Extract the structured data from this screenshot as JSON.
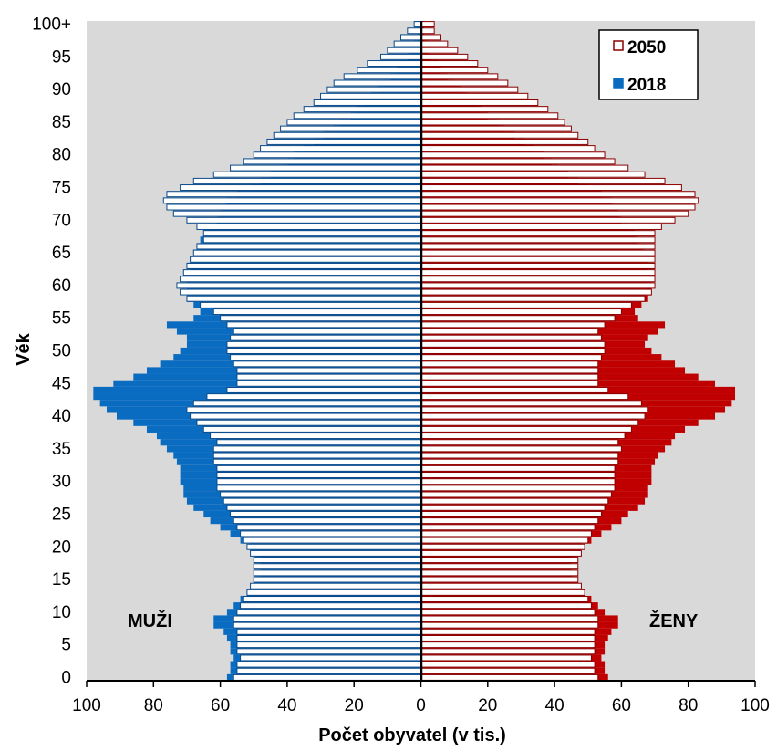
{
  "chart_data": {
    "type": "bar",
    "orientation": "horizontal",
    "subtype": "population-pyramid",
    "title": "",
    "xlabel": "Počet obyvatel (v tis.)",
    "ylabel": "Věk",
    "xlim": [
      -100,
      100
    ],
    "ylim": [
      0,
      100
    ],
    "x_ticks": [
      "100",
      "80",
      "60",
      "40",
      "20",
      "0",
      "20",
      "40",
      "60",
      "80",
      "100"
    ],
    "y_ticks": [
      "0",
      "5",
      "10",
      "15",
      "20",
      "25",
      "30",
      "35",
      "40",
      "45",
      "50",
      "55",
      "60",
      "65",
      "70",
      "75",
      "80",
      "85",
      "90",
      "95",
      "100+"
    ],
    "grid": false,
    "legend": "top-right",
    "left_label": "MUŽI",
    "right_label": "ŽENY",
    "ages": [
      0,
      1,
      2,
      3,
      4,
      5,
      6,
      7,
      8,
      9,
      10,
      11,
      12,
      13,
      14,
      15,
      16,
      17,
      18,
      19,
      20,
      21,
      22,
      23,
      24,
      25,
      26,
      27,
      28,
      29,
      30,
      31,
      32,
      33,
      34,
      35,
      36,
      37,
      38,
      39,
      40,
      41,
      42,
      43,
      44,
      45,
      46,
      47,
      48,
      49,
      50,
      51,
      52,
      53,
      54,
      55,
      56,
      57,
      58,
      59,
      60,
      61,
      62,
      63,
      64,
      65,
      66,
      67,
      68,
      69,
      70,
      71,
      72,
      73,
      74,
      75,
      76,
      77,
      78,
      79,
      80,
      81,
      82,
      83,
      84,
      85,
      86,
      87,
      88,
      89,
      90,
      91,
      92,
      93,
      94,
      95,
      96,
      97,
      98,
      99,
      100
    ],
    "series": [
      {
        "name": "2018",
        "style": "filled",
        "colors": {
          "male": "#0a6cc1",
          "female": "#c00000"
        },
        "male": [
          58,
          57,
          57,
          56,
          57,
          57,
          58,
          59,
          62,
          62,
          58,
          56,
          54,
          52,
          50,
          49,
          48,
          48,
          48,
          49,
          51,
          54,
          57,
          60,
          63,
          65,
          68,
          70,
          71,
          71,
          72,
          72,
          72,
          73,
          74,
          76,
          78,
          79,
          82,
          86,
          91,
          94,
          96,
          98,
          98,
          92,
          86,
          82,
          78,
          74,
          72,
          70,
          70,
          73,
          76,
          68,
          66,
          68,
          70,
          70,
          70,
          70,
          69,
          70,
          69,
          68,
          67,
          66,
          65,
          63,
          61,
          60,
          59,
          58,
          55,
          51,
          48,
          45,
          42,
          40,
          38,
          35,
          32,
          29,
          26,
          24,
          21,
          19,
          17,
          15,
          13,
          11,
          9,
          7,
          6,
          4,
          3,
          2,
          1,
          1,
          2
        ],
        "female": [
          56,
          55,
          55,
          54,
          55,
          55,
          56,
          57,
          59,
          59,
          55,
          53,
          51,
          49,
          47,
          46,
          45,
          45,
          45,
          46,
          48,
          51,
          54,
          57,
          60,
          62,
          65,
          67,
          68,
          68,
          69,
          69,
          69,
          70,
          71,
          73,
          75,
          76,
          79,
          83,
          88,
          91,
          93,
          94,
          94,
          88,
          83,
          79,
          76,
          72,
          69,
          67,
          68,
          71,
          73,
          65,
          64,
          66,
          68,
          69,
          69,
          69,
          68,
          69,
          68,
          67,
          66,
          65,
          64,
          62,
          60,
          59,
          58,
          57,
          54,
          50,
          47,
          44,
          41,
          39,
          37,
          34,
          31,
          28,
          25,
          23,
          20,
          18,
          16,
          14,
          12,
          10,
          8,
          6,
          5,
          3,
          2,
          2,
          1,
          1,
          1
        ]
      },
      {
        "name": "2050",
        "style": "outline",
        "colors": {
          "male": "#0a4a8a",
          "female": "#8c0000"
        },
        "male": [
          56,
          55,
          55,
          54,
          55,
          55,
          55,
          55,
          56,
          56,
          55,
          54,
          53,
          52,
          51,
          50,
          50,
          50,
          50,
          51,
          52,
          53,
          54,
          55,
          56,
          57,
          58,
          59,
          60,
          61,
          61,
          61,
          61,
          62,
          62,
          62,
          61,
          63,
          65,
          67,
          69,
          70,
          68,
          64,
          58,
          55,
          55,
          55,
          56,
          57,
          58,
          58,
          57,
          56,
          58,
          60,
          62,
          66,
          70,
          72,
          73,
          72,
          71,
          70,
          69,
          68,
          67,
          65,
          65,
          67,
          70,
          74,
          76,
          77,
          76,
          72,
          68,
          62,
          57,
          53,
          50,
          48,
          46,
          44,
          42,
          40,
          38,
          35,
          32,
          30,
          28,
          26,
          23,
          19,
          16,
          12,
          10,
          8,
          6,
          4,
          2
        ],
        "female": [
          53,
          52,
          52,
          51,
          52,
          52,
          52,
          52,
          53,
          53,
          52,
          51,
          50,
          49,
          48,
          47,
          47,
          47,
          47,
          48,
          49,
          50,
          51,
          52,
          53,
          54,
          55,
          56,
          57,
          58,
          58,
          58,
          58,
          59,
          59,
          60,
          59,
          61,
          63,
          65,
          67,
          68,
          66,
          62,
          56,
          53,
          53,
          53,
          53,
          54,
          55,
          55,
          54,
          53,
          55,
          58,
          60,
          63,
          67,
          69,
          70,
          70,
          70,
          70,
          70,
          70,
          70,
          70,
          70,
          72,
          76,
          80,
          82,
          83,
          82,
          78,
          73,
          67,
          62,
          58,
          55,
          52,
          50,
          47,
          45,
          43,
          41,
          38,
          35,
          32,
          29,
          26,
          23,
          20,
          17,
          14,
          11,
          8,
          6,
          4,
          4
        ]
      }
    ]
  }
}
